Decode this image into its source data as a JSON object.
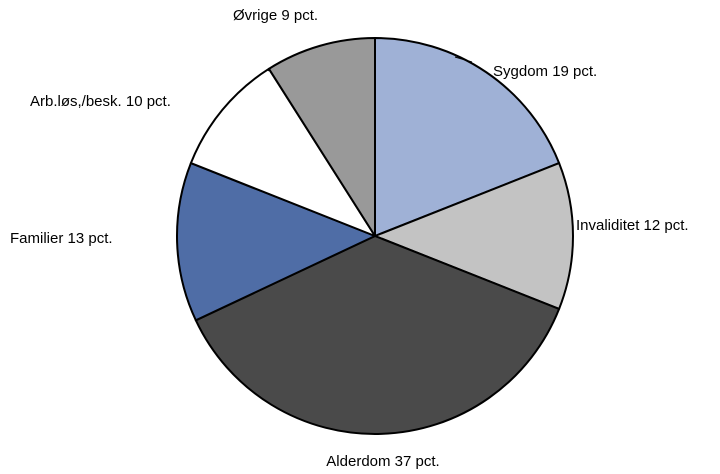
{
  "chart_data": {
    "type": "pie",
    "title": "",
    "start_angle_deg": 0,
    "direction": "clockwise",
    "slices": [
      {
        "label": "Sygdom",
        "value": 19,
        "unit": "pct.",
        "color": "#9FB1D6",
        "text": "Sygdom 19 pct."
      },
      {
        "label": "Invaliditet",
        "value": 12,
        "unit": "pct.",
        "color": "#C3C3C3",
        "text": "Invaliditet 12 pct."
      },
      {
        "label": "Alderdom",
        "value": 37,
        "unit": "pct.",
        "color": "#4A4A4A",
        "text": "Alderdom 37 pct."
      },
      {
        "label": "Familier",
        "value": 13,
        "unit": "pct.",
        "color": "#4F6DA6",
        "text": "Familier 13 pct."
      },
      {
        "label": "Arb.løs,/besk.",
        "value": 10,
        "unit": "pct.",
        "color": "#FFFFFF",
        "text": "Arb.løs,/besk. 10 pct."
      },
      {
        "label": "Øvrige",
        "value": 9,
        "unit": "pct.",
        "color": "#999999",
        "text": "Øvrige 9 pct."
      }
    ]
  }
}
